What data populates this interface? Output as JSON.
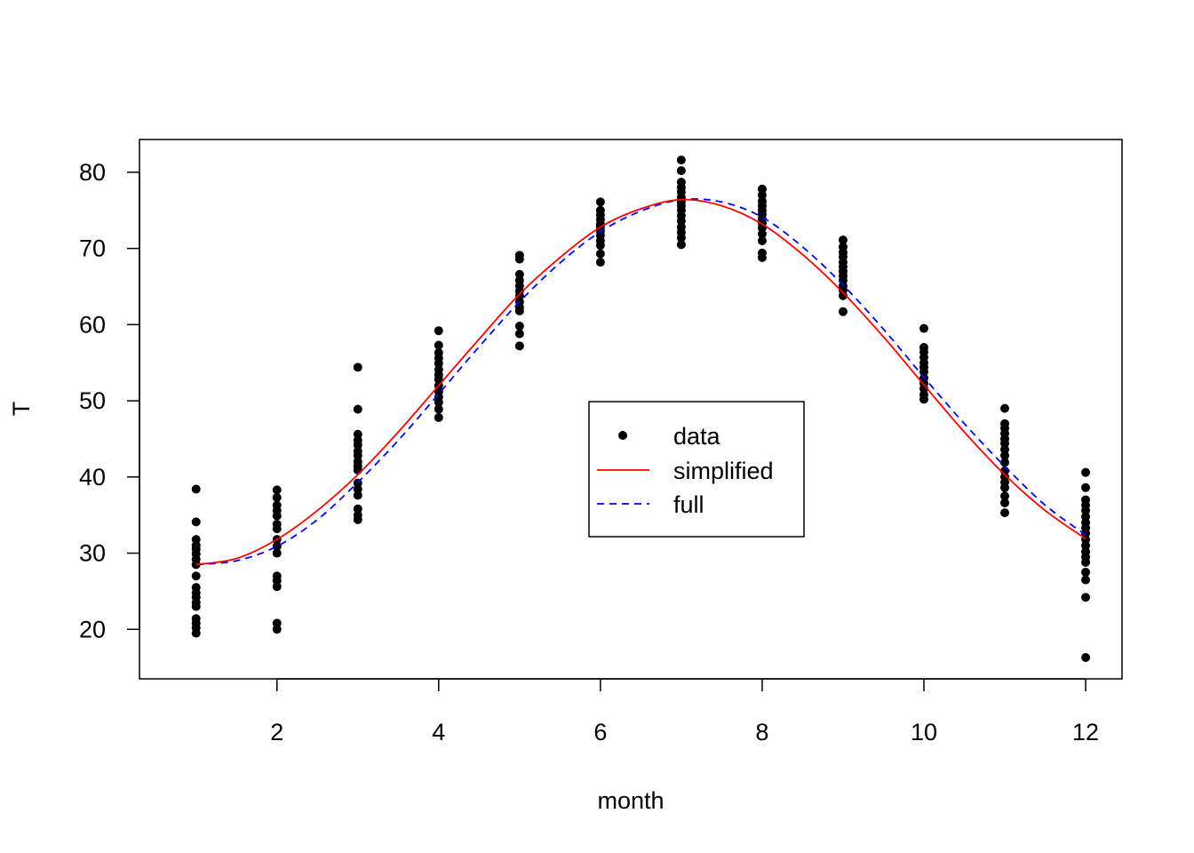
{
  "chart_data": {
    "type": "scatter",
    "xlabel": "month",
    "ylabel": "T",
    "xlim": [
      0.3,
      12.45
    ],
    "ylim": [
      13.5,
      84.3
    ],
    "xticks": [
      2,
      4,
      6,
      8,
      10,
      12
    ],
    "yticks": [
      20,
      30,
      40,
      50,
      60,
      70,
      80
    ],
    "grid": false,
    "legend_position": "center-right",
    "legend": [
      {
        "key": "data",
        "label": "data",
        "symbol": "point",
        "color": "#000000"
      },
      {
        "key": "simplified",
        "label": "simplified",
        "symbol": "solid-line",
        "color": "#ff0000"
      },
      {
        "key": "full",
        "label": "full",
        "symbol": "dashed-line",
        "color": "#0000ff"
      }
    ],
    "points": {
      "name": "data",
      "color": "#000000",
      "groups": [
        {
          "x": 1,
          "y": [
            38.4,
            34.1,
            31.8,
            31.0,
            30.5,
            29.9,
            29.2,
            28.5,
            27.0,
            25.5,
            24.8,
            24.2,
            23.5,
            23.0,
            21.4,
            20.8,
            20.2,
            19.5
          ]
        },
        {
          "x": 2,
          "y": [
            38.3,
            37.3,
            36.3,
            35.6,
            34.9,
            33.8,
            33.2,
            31.8,
            30.9,
            30.0,
            27.0,
            26.4,
            25.6,
            20.8,
            20.0
          ]
        },
        {
          "x": 3,
          "y": [
            54.4,
            48.9,
            45.6,
            44.8,
            44.2,
            43.4,
            42.8,
            42.0,
            41.4,
            40.9,
            39.2,
            38.4,
            37.6,
            35.8,
            35.0,
            34.4
          ]
        },
        {
          "x": 4,
          "y": [
            59.2,
            57.3,
            56.3,
            55.6,
            54.9,
            54.1,
            53.4,
            52.8,
            52.0,
            51.2,
            50.5,
            49.8,
            48.9,
            47.8
          ]
        },
        {
          "x": 5,
          "y": [
            69.1,
            68.6,
            66.6,
            65.8,
            65.1,
            64.4,
            63.8,
            63.0,
            62.3,
            61.8,
            59.8,
            58.8,
            57.2
          ]
        },
        {
          "x": 6,
          "y": [
            76.1,
            75.0,
            74.4,
            73.8,
            73.2,
            72.8,
            72.3,
            71.7,
            71.0,
            70.4,
            69.3,
            68.2
          ]
        },
        {
          "x": 7,
          "y": [
            81.6,
            80.2,
            78.7,
            78.0,
            77.4,
            76.7,
            76.1,
            75.6,
            75.0,
            74.3,
            73.6,
            72.8,
            72.1,
            71.4,
            70.5
          ]
        },
        {
          "x": 8,
          "y": [
            77.8,
            77.0,
            76.2,
            75.6,
            75.0,
            74.5,
            73.9,
            73.3,
            72.7,
            71.9,
            71.0,
            69.4,
            68.8
          ]
        },
        {
          "x": 9,
          "y": [
            71.1,
            70.2,
            69.5,
            68.9,
            68.2,
            67.6,
            67.0,
            66.4,
            65.8,
            65.1,
            64.5,
            63.8,
            61.7
          ]
        },
        {
          "x": 10,
          "y": [
            59.5,
            57.0,
            56.4,
            55.7,
            55.0,
            54.4,
            53.8,
            53.0,
            52.3,
            51.6,
            50.8,
            50.2
          ]
        },
        {
          "x": 11,
          "y": [
            49.0,
            47.0,
            46.4,
            45.7,
            45.0,
            44.4,
            43.6,
            42.8,
            41.9,
            40.8,
            40.0,
            39.3,
            38.6,
            37.5,
            36.6,
            35.3
          ]
        },
        {
          "x": 12,
          "y": [
            40.6,
            38.6,
            37.0,
            36.3,
            35.6,
            34.8,
            34.0,
            33.3,
            32.6,
            31.8,
            31.0,
            30.2,
            29.5,
            28.8,
            27.5,
            26.5,
            24.2,
            16.3
          ]
        }
      ]
    },
    "series": [
      {
        "name": "simplified",
        "color": "#ff0000",
        "dash": "solid",
        "x": [
          1,
          1.5,
          2,
          2.5,
          3,
          3.5,
          4,
          4.5,
          5,
          5.5,
          6,
          6.5,
          7,
          7.5,
          8,
          8.5,
          9,
          9.5,
          10,
          10.5,
          11,
          11.5,
          12
        ],
        "y": [
          28.5,
          29.3,
          31.8,
          35.6,
          40.3,
          45.9,
          52.0,
          58.1,
          64.0,
          68.8,
          72.8,
          75.2,
          76.4,
          75.6,
          73.2,
          69.2,
          64.2,
          58.4,
          52.1,
          45.9,
          40.3,
          35.6,
          31.9
        ]
      },
      {
        "name": "full",
        "color": "#0000ff",
        "dash": "dashed",
        "x": [
          1,
          1.5,
          2,
          2.5,
          3,
          3.5,
          4,
          4.5,
          5,
          5.5,
          6,
          6.5,
          7,
          7.5,
          8,
          8.5,
          9,
          9.5,
          10,
          10.5,
          11,
          11.5,
          12
        ],
        "y": [
          28.5,
          29.0,
          30.9,
          34.4,
          39.3,
          44.8,
          50.9,
          57.1,
          63.0,
          68.1,
          72.2,
          74.9,
          76.4,
          76.1,
          74.1,
          70.2,
          65.2,
          59.4,
          53.1,
          47.0,
          41.4,
          36.3,
          32.4
        ]
      }
    ]
  }
}
